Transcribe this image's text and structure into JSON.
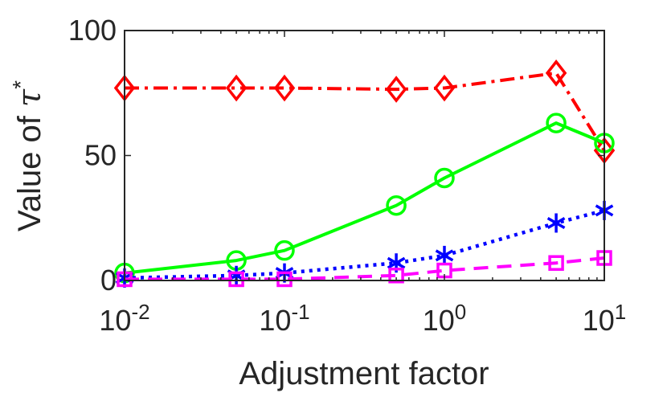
{
  "chart_data": {
    "type": "line",
    "title": "",
    "xlabel": "Adjustment factor",
    "ylabel": "Value of τ*",
    "ylabel_main": "Value of ",
    "ylabel_symbol": "τ",
    "ylabel_sup": "*",
    "xscale": "log",
    "xlim": [
      0.01,
      10
    ],
    "ylim": [
      0,
      100
    ],
    "xticks": [
      {
        "value": 0.01,
        "base": "10",
        "exp": "-2"
      },
      {
        "value": 0.1,
        "base": "10",
        "exp": "-1"
      },
      {
        "value": 1,
        "base": "10",
        "exp": "0"
      },
      {
        "value": 10,
        "base": "10",
        "exp": "1"
      }
    ],
    "yticks": [
      {
        "value": 0,
        "label": "0"
      },
      {
        "value": 50,
        "label": "50"
      },
      {
        "value": 100,
        "label": "100"
      }
    ],
    "grid": false,
    "legend": "none",
    "x": [
      0.01,
      0.05,
      0.1,
      0.5,
      1,
      5,
      10
    ],
    "series": [
      {
        "name": "red-diamond-dashdot",
        "color": "#ff0000",
        "marker": "diamond",
        "linestyle": "dashdot",
        "values": [
          77,
          77,
          77,
          76.5,
          77,
          83,
          52
        ]
      },
      {
        "name": "green-circle-solid",
        "color": "#00ff00",
        "marker": "circle",
        "linestyle": "solid",
        "values": [
          3,
          8,
          12,
          30,
          41,
          63,
          55
        ]
      },
      {
        "name": "blue-asterisk-dotted",
        "color": "#0000ff",
        "marker": "asterisk",
        "linestyle": "dotted",
        "values": [
          1,
          2,
          3,
          7,
          10,
          23,
          28
        ]
      },
      {
        "name": "magenta-square-dashed",
        "color": "#ff00ff",
        "marker": "square",
        "linestyle": "dashed",
        "values": [
          0.5,
          0.5,
          0.5,
          2,
          4,
          7,
          9
        ]
      }
    ]
  }
}
